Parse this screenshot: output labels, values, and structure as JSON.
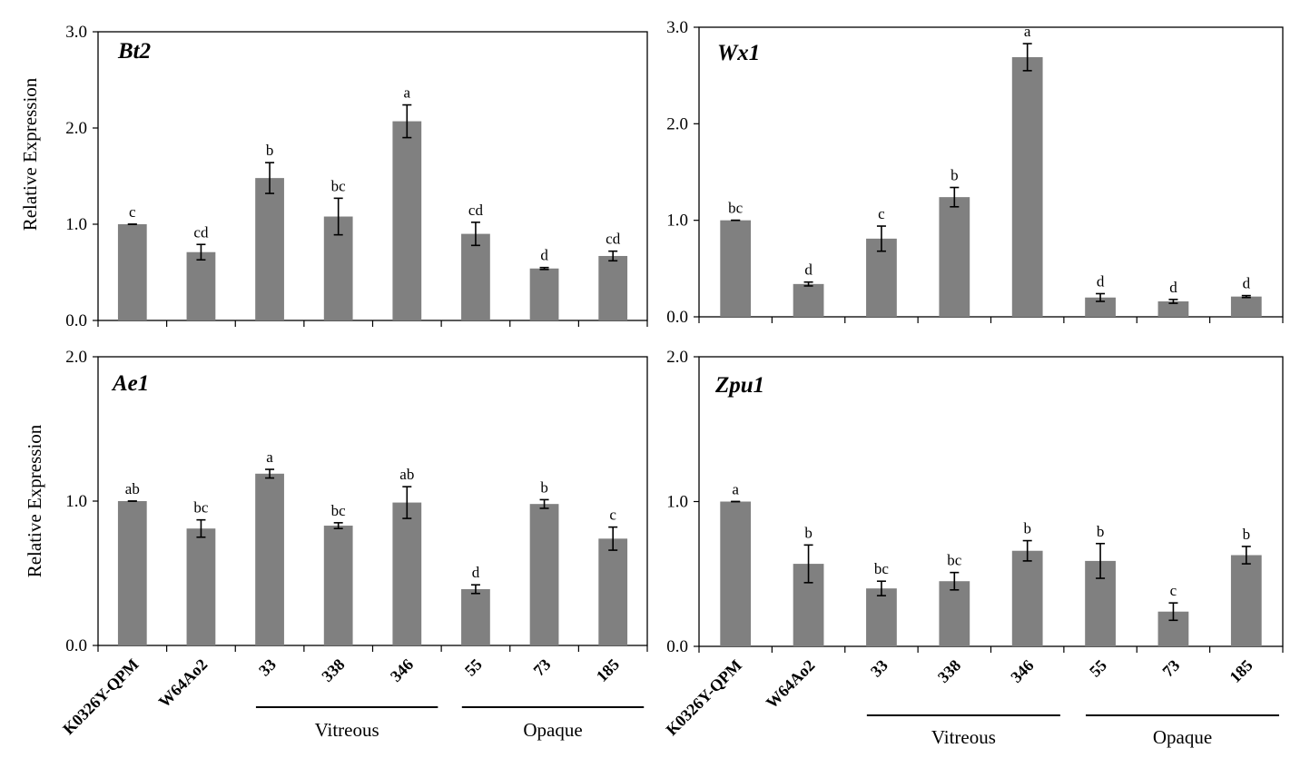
{
  "figure": {
    "colors": {
      "bar": "#808080",
      "axis": "#000000",
      "background": "#ffffff"
    },
    "categories": [
      "K0326Y-QPM",
      "W64Ao2",
      "33",
      "338",
      "346",
      "55",
      "73",
      "185"
    ],
    "groups": [
      {
        "label": "Vitreous",
        "members": [
          "33",
          "338",
          "346"
        ]
      },
      {
        "label": "Opaque",
        "members": [
          "55",
          "73",
          "185"
        ]
      }
    ]
  },
  "chart_data": [
    {
      "type": "bar",
      "title": "Bt2",
      "ylabel": "Relative Expression",
      "ylim": [
        0,
        3.0
      ],
      "yticks": [
        "0.0",
        "1.0",
        "2.0",
        "3.0"
      ],
      "categories": [
        "K0326Y-QPM",
        "W64Ao2",
        "33",
        "338",
        "346",
        "55",
        "73",
        "185"
      ],
      "values": [
        1.0,
        0.71,
        1.48,
        1.08,
        2.07,
        0.9,
        0.54,
        0.67
      ],
      "errors": [
        0.0,
        0.08,
        0.16,
        0.19,
        0.17,
        0.12,
        0.01,
        0.05
      ],
      "significance": [
        "c",
        "cd",
        "b",
        "bc",
        "a",
        "cd",
        "d",
        "cd"
      ]
    },
    {
      "type": "bar",
      "title": "Wx1",
      "ylabel": "",
      "ylim": [
        0,
        3.0
      ],
      "yticks": [
        "0.0",
        "1.0",
        "2.0",
        "3.0"
      ],
      "categories": [
        "K0326Y-QPM",
        "W64Ao2",
        "33",
        "338",
        "346",
        "55",
        "73",
        "185"
      ],
      "values": [
        1.0,
        0.34,
        0.81,
        1.24,
        2.69,
        0.2,
        0.16,
        0.21
      ],
      "errors": [
        0.0,
        0.02,
        0.13,
        0.1,
        0.14,
        0.04,
        0.02,
        0.01
      ],
      "significance": [
        "bc",
        "d",
        "c",
        "b",
        "a",
        "d",
        "d",
        "d"
      ]
    },
    {
      "type": "bar",
      "title": "Ae1",
      "ylabel": "Relative Expression",
      "ylim": [
        0,
        2.0
      ],
      "yticks": [
        "0.0",
        "1.0",
        "2.0"
      ],
      "categories": [
        "K0326Y-QPM",
        "W64Ao2",
        "33",
        "338",
        "346",
        "55",
        "73",
        "185"
      ],
      "values": [
        1.0,
        0.81,
        1.19,
        0.83,
        0.99,
        0.39,
        0.98,
        0.74
      ],
      "errors": [
        0.0,
        0.06,
        0.03,
        0.02,
        0.11,
        0.03,
        0.03,
        0.08
      ],
      "significance": [
        "ab",
        "bc",
        "a",
        "bc",
        "ab",
        "d",
        "b",
        "c"
      ]
    },
    {
      "type": "bar",
      "title": "Zpu1",
      "ylabel": "",
      "ylim": [
        0,
        2.0
      ],
      "yticks": [
        "0.0",
        "1.0",
        "2.0"
      ],
      "categories": [
        "K0326Y-QPM",
        "W64Ao2",
        "33",
        "338",
        "346",
        "55",
        "73",
        "185"
      ],
      "values": [
        1.0,
        0.57,
        0.4,
        0.45,
        0.66,
        0.59,
        0.24,
        0.63
      ],
      "errors": [
        0.0,
        0.13,
        0.05,
        0.06,
        0.07,
        0.12,
        0.06,
        0.06
      ],
      "significance": [
        "a",
        "b",
        "bc",
        "bc",
        "b",
        "b",
        "c",
        "b"
      ]
    }
  ]
}
